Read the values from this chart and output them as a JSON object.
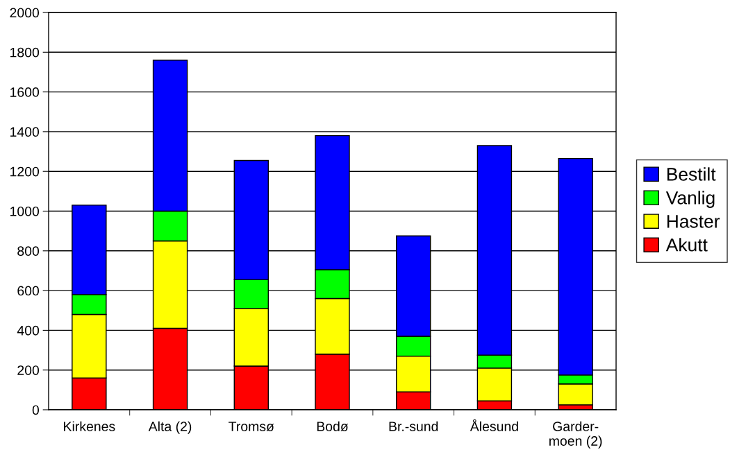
{
  "chart_data": {
    "type": "bar",
    "stacked": true,
    "categories": [
      "Kirkenes",
      "Alta (2)",
      "Tromsø",
      "Bodø",
      "Br.-sund",
      "Ålesund",
      "Garder-\nmoen (2)"
    ],
    "series": [
      {
        "name": "Akutt",
        "color": "#ff0000",
        "values": [
          160,
          410,
          220,
          280,
          90,
          45,
          25
        ]
      },
      {
        "name": "Haster",
        "color": "#ffff00",
        "values": [
          320,
          440,
          290,
          280,
          180,
          165,
          105
        ]
      },
      {
        "name": "Vanlig",
        "color": "#00ff00",
        "values": [
          100,
          150,
          145,
          145,
          100,
          65,
          45
        ]
      },
      {
        "name": "Bestilt",
        "color": "#0000ff",
        "values": [
          450,
          760,
          600,
          675,
          505,
          1055,
          1090
        ]
      }
    ],
    "ylim": [
      0,
      2000
    ],
    "yticks": [
      0,
      200,
      400,
      600,
      800,
      1000,
      1200,
      1400,
      1600,
      1800,
      2000
    ],
    "grid": "y",
    "legend": "right"
  }
}
